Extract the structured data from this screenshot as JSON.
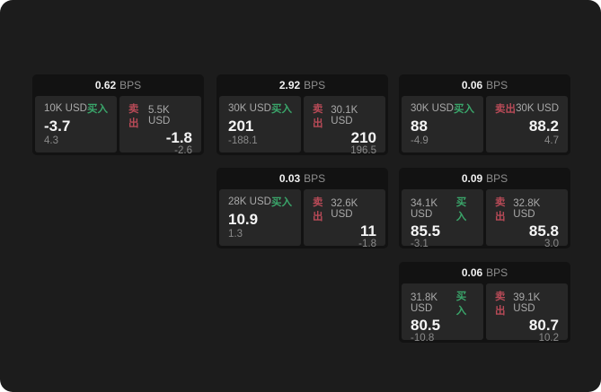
{
  "labels": {
    "bps_unit": "BPS",
    "buy": "买入",
    "sell": "卖出"
  },
  "colors": {
    "page_bg": "#1c1c1c",
    "card_bg": "#121212",
    "panel_bg": "#272727",
    "buy": "#3aa56a",
    "sell": "#b84a57"
  },
  "cards": [
    {
      "spread": "0.62",
      "buy": {
        "amount": "10K USD",
        "price": "-3.7",
        "sub": "4.3"
      },
      "sell": {
        "amount": "5.5K USD",
        "price": "-1.8",
        "sub": "-2.6"
      }
    },
    {
      "spread": "2.92",
      "buy": {
        "amount": "30K USD",
        "price": "201",
        "sub": "-188.1"
      },
      "sell": {
        "amount": "30.1K USD",
        "price": "210",
        "sub": "196.5"
      }
    },
    {
      "spread": "0.06",
      "buy": {
        "amount": "30K USD",
        "price": "88",
        "sub": "-4.9"
      },
      "sell": {
        "amount": "30K USD",
        "price": "88.2",
        "sub": "4.7"
      }
    },
    {
      "spread": "0.03",
      "buy": {
        "amount": "28K USD",
        "price": "10.9",
        "sub": "1.3"
      },
      "sell": {
        "amount": "32.6K USD",
        "price": "11",
        "sub": "-1.8"
      }
    },
    {
      "spread": "0.09",
      "buy": {
        "amount": "34.1K USD",
        "price": "85.5",
        "sub": "-3.1"
      },
      "sell": {
        "amount": "32.8K USD",
        "price": "85.8",
        "sub": "3.0"
      }
    },
    {
      "spread": "0.06",
      "buy": {
        "amount": "31.8K USD",
        "price": "80.5",
        "sub": "-10.8"
      },
      "sell": {
        "amount": "39.1K USD",
        "price": "80.7",
        "sub": "10.2"
      }
    }
  ]
}
